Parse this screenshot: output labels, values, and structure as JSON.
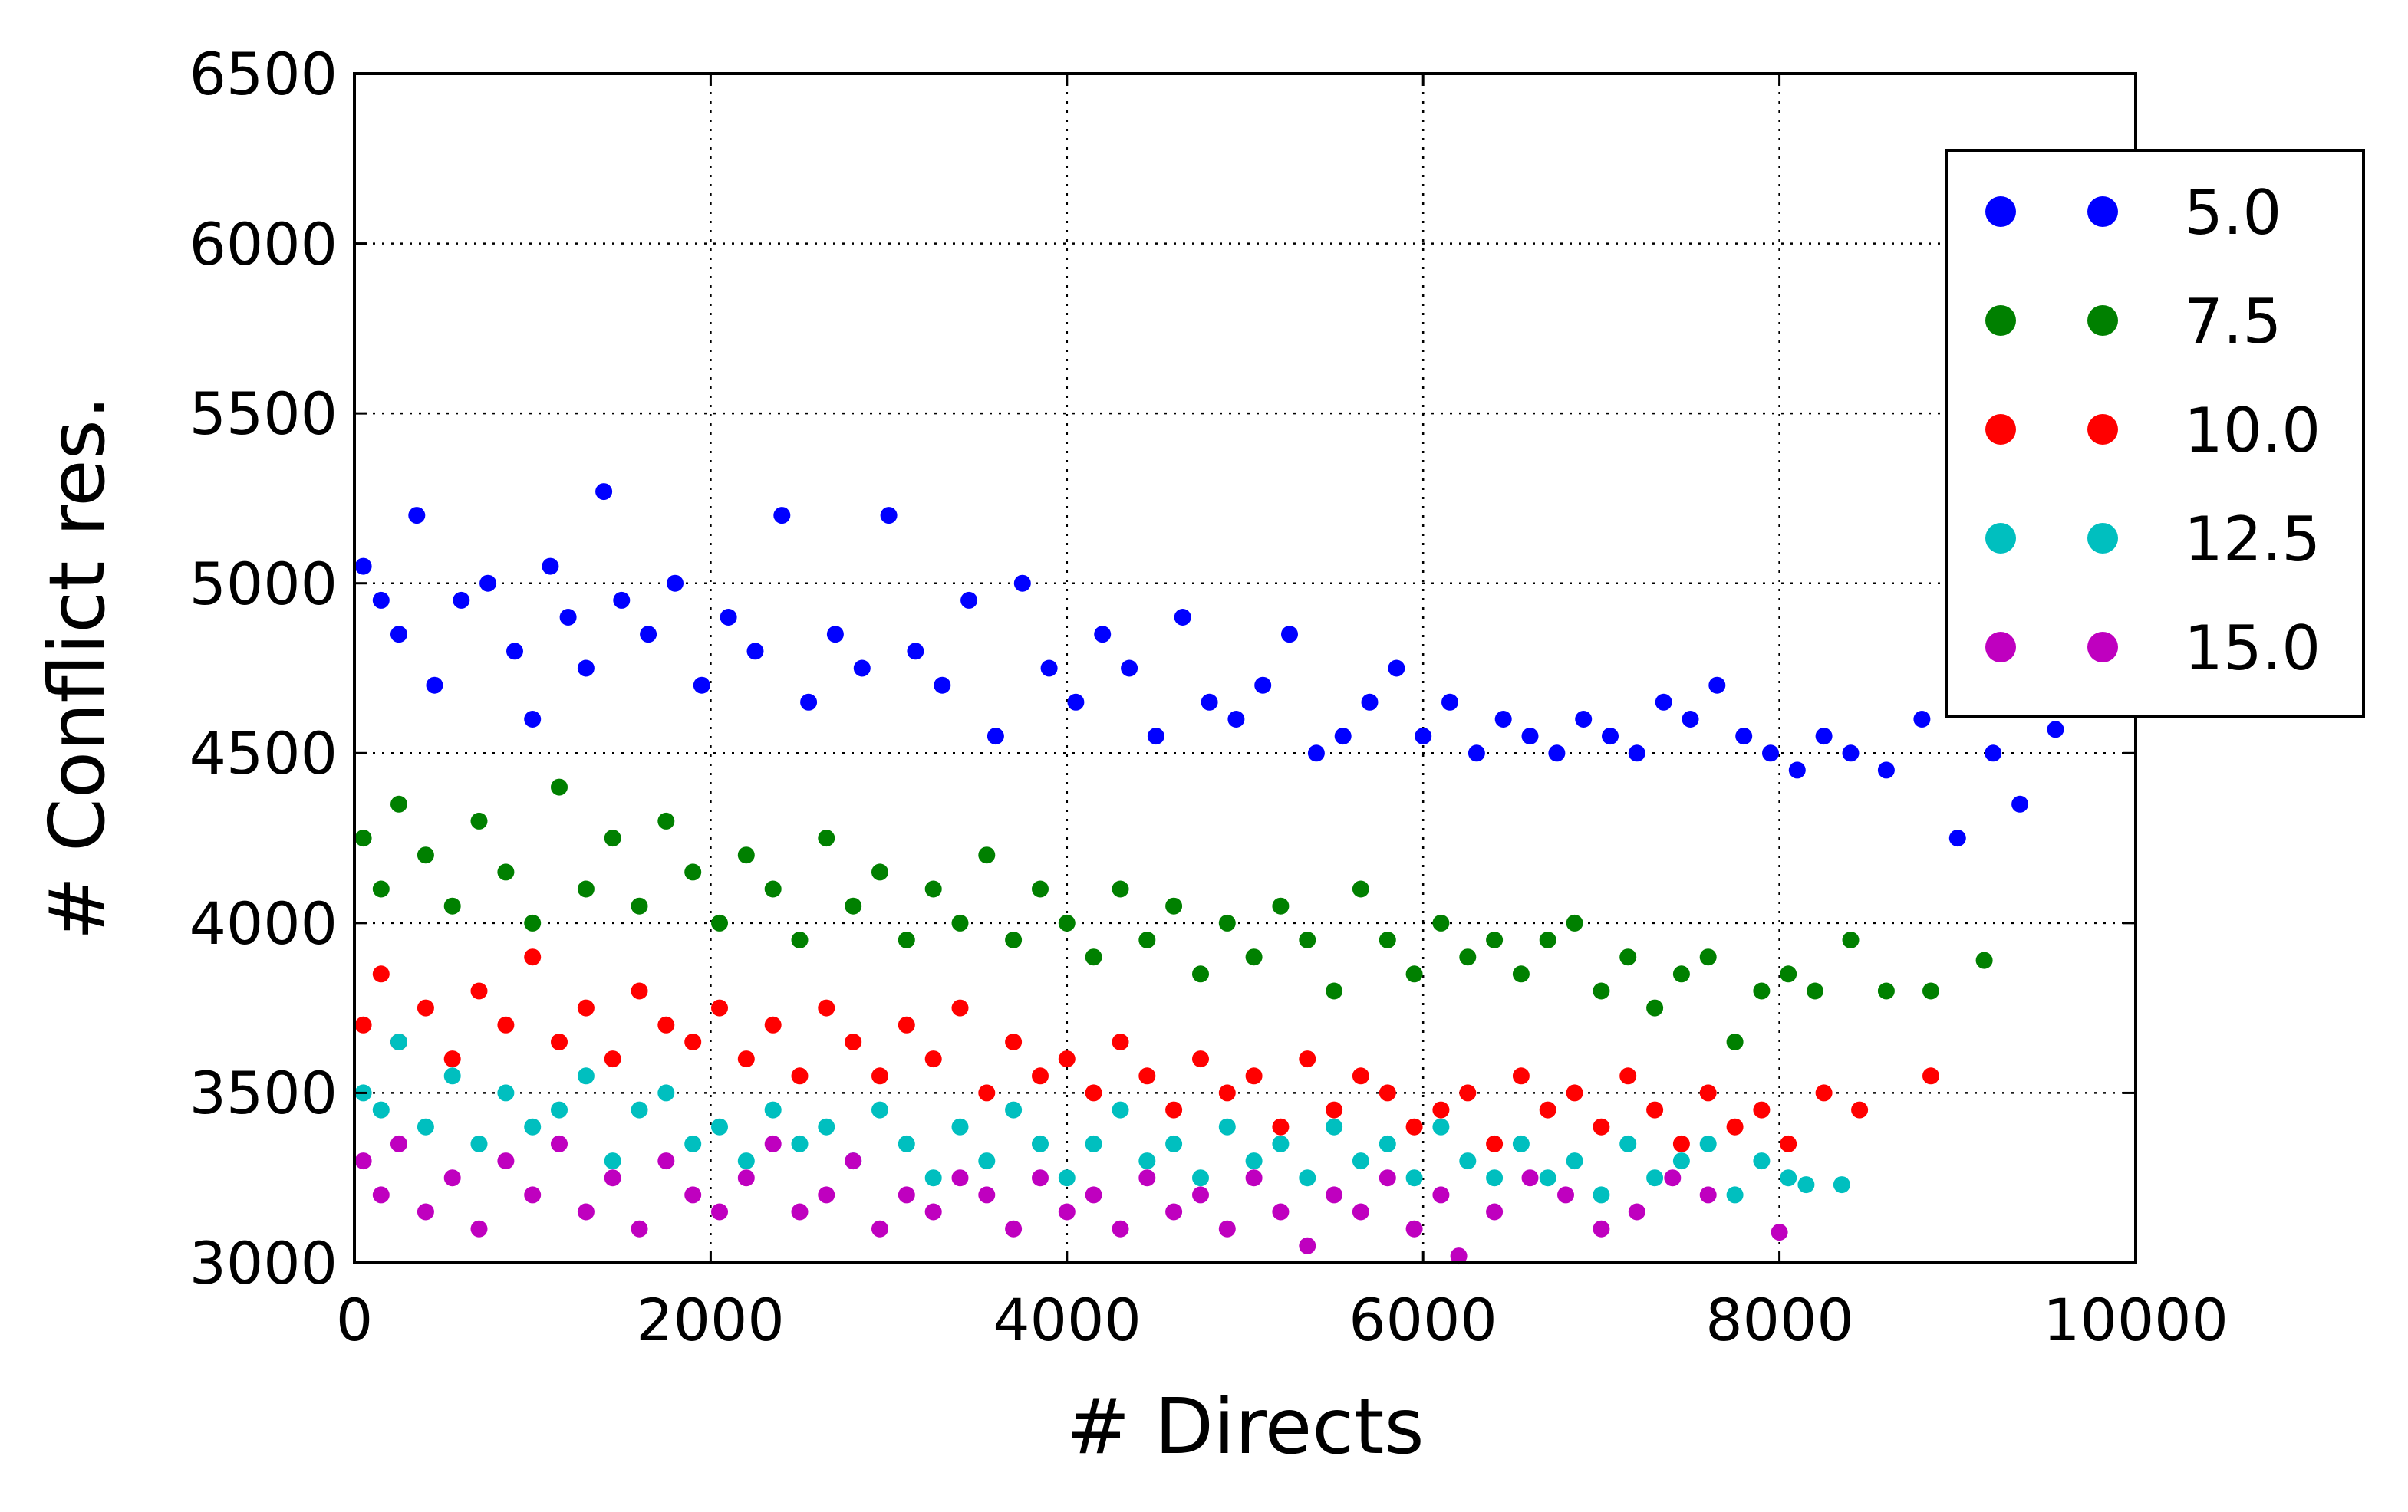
{
  "chart_data": {
    "type": "scatter",
    "title": "",
    "xlabel": "# Directs",
    "ylabel": "# Conflict res.",
    "xlim": [
      0,
      10000
    ],
    "ylim": [
      3000,
      6500
    ],
    "x_ticks": [
      "0",
      "2000",
      "4000",
      "6000",
      "8000",
      "10000"
    ],
    "y_ticks": [
      "3000",
      "3500",
      "4000",
      "4500",
      "5000",
      "5500",
      "6000",
      "6500"
    ],
    "grid": true,
    "legend_placement": "top-right",
    "series": [
      {
        "name": "5.0",
        "color": "#0000ff",
        "points": [
          [
            50,
            5050
          ],
          [
            150,
            4950
          ],
          [
            250,
            4850
          ],
          [
            350,
            5200
          ],
          [
            450,
            4700
          ],
          [
            600,
            4950
          ],
          [
            750,
            5000
          ],
          [
            900,
            4800
          ],
          [
            1000,
            4600
          ],
          [
            1100,
            5050
          ],
          [
            1200,
            4900
          ],
          [
            1300,
            4750
          ],
          [
            1400,
            5270
          ],
          [
            1500,
            4950
          ],
          [
            1650,
            4850
          ],
          [
            1800,
            5000
          ],
          [
            1950,
            4700
          ],
          [
            2100,
            4900
          ],
          [
            2250,
            4800
          ],
          [
            2400,
            5200
          ],
          [
            2550,
            4650
          ],
          [
            2700,
            4850
          ],
          [
            2850,
            4750
          ],
          [
            3000,
            5200
          ],
          [
            3150,
            4800
          ],
          [
            3300,
            4700
          ],
          [
            3450,
            4950
          ],
          [
            3600,
            4550
          ],
          [
            3750,
            5000
          ],
          [
            3900,
            4750
          ],
          [
            4050,
            4650
          ],
          [
            4200,
            4850
          ],
          [
            4350,
            4750
          ],
          [
            4500,
            4550
          ],
          [
            4650,
            4900
          ],
          [
            4800,
            4650
          ],
          [
            4950,
            4600
          ],
          [
            5100,
            4700
          ],
          [
            5250,
            4850
          ],
          [
            5400,
            4500
          ],
          [
            5550,
            4550
          ],
          [
            5700,
            4650
          ],
          [
            5850,
            4750
          ],
          [
            6000,
            4550
          ],
          [
            6150,
            4650
          ],
          [
            6300,
            4500
          ],
          [
            6450,
            4600
          ],
          [
            6600,
            4550
          ],
          [
            6750,
            4500
          ],
          [
            6900,
            4600
          ],
          [
            7050,
            4550
          ],
          [
            7200,
            4500
          ],
          [
            7350,
            4650
          ],
          [
            7500,
            4600
          ],
          [
            7650,
            4700
          ],
          [
            7800,
            4550
          ],
          [
            7950,
            4500
          ],
          [
            8100,
            4450
          ],
          [
            8250,
            4550
          ],
          [
            8400,
            4500
          ],
          [
            8600,
            4450
          ],
          [
            8800,
            4600
          ],
          [
            9000,
            4250
          ],
          [
            9200,
            4500
          ],
          [
            9350,
            4350
          ],
          [
            9550,
            4570
          ]
        ]
      },
      {
        "name": "7.5",
        "color": "#008000",
        "points": [
          [
            50,
            4250
          ],
          [
            150,
            4100
          ],
          [
            250,
            4350
          ],
          [
            400,
            4200
          ],
          [
            550,
            4050
          ],
          [
            700,
            4300
          ],
          [
            850,
            4150
          ],
          [
            1000,
            4000
          ],
          [
            1150,
            4400
          ],
          [
            1300,
            4100
          ],
          [
            1450,
            4250
          ],
          [
            1600,
            4050
          ],
          [
            1750,
            4300
          ],
          [
            1900,
            4150
          ],
          [
            2050,
            4000
          ],
          [
            2200,
            4200
          ],
          [
            2350,
            4100
          ],
          [
            2500,
            3950
          ],
          [
            2650,
            4250
          ],
          [
            2800,
            4050
          ],
          [
            2950,
            4150
          ],
          [
            3100,
            3950
          ],
          [
            3250,
            4100
          ],
          [
            3400,
            4000
          ],
          [
            3550,
            4200
          ],
          [
            3700,
            3950
          ],
          [
            3850,
            4100
          ],
          [
            4000,
            4000
          ],
          [
            4150,
            3900
          ],
          [
            4300,
            4100
          ],
          [
            4450,
            3950
          ],
          [
            4600,
            4050
          ],
          [
            4750,
            3850
          ],
          [
            4900,
            4000
          ],
          [
            5050,
            3900
          ],
          [
            5200,
            4050
          ],
          [
            5350,
            3950
          ],
          [
            5500,
            3800
          ],
          [
            5650,
            4100
          ],
          [
            5800,
            3950
          ],
          [
            5950,
            3850
          ],
          [
            6100,
            4000
          ],
          [
            6250,
            3900
          ],
          [
            6400,
            3950
          ],
          [
            6550,
            3850
          ],
          [
            6700,
            3950
          ],
          [
            6850,
            4000
          ],
          [
            7000,
            3800
          ],
          [
            7150,
            3900
          ],
          [
            7300,
            3750
          ],
          [
            7450,
            3850
          ],
          [
            7600,
            3900
          ],
          [
            7750,
            3650
          ],
          [
            7900,
            3800
          ],
          [
            8050,
            3850
          ],
          [
            8200,
            3800
          ],
          [
            8400,
            3950
          ],
          [
            8600,
            3800
          ],
          [
            8850,
            3800
          ],
          [
            9150,
            3890
          ]
        ]
      },
      {
        "name": "10.0",
        "color": "#ff0000",
        "points": [
          [
            50,
            3700
          ],
          [
            150,
            3850
          ],
          [
            250,
            3650
          ],
          [
            400,
            3750
          ],
          [
            550,
            3600
          ],
          [
            700,
            3800
          ],
          [
            850,
            3700
          ],
          [
            1000,
            3900
          ],
          [
            1150,
            3650
          ],
          [
            1300,
            3750
          ],
          [
            1450,
            3600
          ],
          [
            1600,
            3800
          ],
          [
            1750,
            3700
          ],
          [
            1900,
            3650
          ],
          [
            2050,
            3750
          ],
          [
            2200,
            3600
          ],
          [
            2350,
            3700
          ],
          [
            2500,
            3550
          ],
          [
            2650,
            3750
          ],
          [
            2800,
            3650
          ],
          [
            2950,
            3550
          ],
          [
            3100,
            3700
          ],
          [
            3250,
            3600
          ],
          [
            3400,
            3750
          ],
          [
            3550,
            3500
          ],
          [
            3700,
            3650
          ],
          [
            3850,
            3550
          ],
          [
            4000,
            3600
          ],
          [
            4150,
            3500
          ],
          [
            4300,
            3650
          ],
          [
            4450,
            3550
          ],
          [
            4600,
            3450
          ],
          [
            4750,
            3600
          ],
          [
            4900,
            3500
          ],
          [
            5050,
            3550
          ],
          [
            5200,
            3400
          ],
          [
            5350,
            3600
          ],
          [
            5500,
            3450
          ],
          [
            5650,
            3550
          ],
          [
            5800,
            3500
          ],
          [
            5950,
            3400
          ],
          [
            6100,
            3450
          ],
          [
            6250,
            3500
          ],
          [
            6400,
            3350
          ],
          [
            6550,
            3550
          ],
          [
            6700,
            3450
          ],
          [
            6850,
            3500
          ],
          [
            7000,
            3400
          ],
          [
            7150,
            3550
          ],
          [
            7300,
            3450
          ],
          [
            7450,
            3350
          ],
          [
            7600,
            3500
          ],
          [
            7750,
            3400
          ],
          [
            7900,
            3450
          ],
          [
            8050,
            3350
          ],
          [
            8250,
            3500
          ],
          [
            8450,
            3450
          ],
          [
            8850,
            3550
          ]
        ]
      },
      {
        "name": "12.5",
        "color": "#00bfbf",
        "points": [
          [
            50,
            3500
          ],
          [
            150,
            3450
          ],
          [
            250,
            3650
          ],
          [
            400,
            3400
          ],
          [
            550,
            3550
          ],
          [
            700,
            3350
          ],
          [
            850,
            3500
          ],
          [
            1000,
            3400
          ],
          [
            1150,
            3450
          ],
          [
            1300,
            3550
          ],
          [
            1450,
            3300
          ],
          [
            1600,
            3450
          ],
          [
            1750,
            3500
          ],
          [
            1900,
            3350
          ],
          [
            2050,
            3400
          ],
          [
            2200,
            3300
          ],
          [
            2350,
            3450
          ],
          [
            2500,
            3350
          ],
          [
            2650,
            3400
          ],
          [
            2800,
            3300
          ],
          [
            2950,
            3450
          ],
          [
            3100,
            3350
          ],
          [
            3250,
            3250
          ],
          [
            3400,
            3400
          ],
          [
            3550,
            3300
          ],
          [
            3700,
            3450
          ],
          [
            3850,
            3350
          ],
          [
            4000,
            3250
          ],
          [
            4150,
            3350
          ],
          [
            4300,
            3450
          ],
          [
            4450,
            3300
          ],
          [
            4600,
            3350
          ],
          [
            4750,
            3250
          ],
          [
            4900,
            3400
          ],
          [
            5050,
            3300
          ],
          [
            5200,
            3350
          ],
          [
            5350,
            3250
          ],
          [
            5500,
            3400
          ],
          [
            5650,
            3300
          ],
          [
            5800,
            3350
          ],
          [
            5950,
            3250
          ],
          [
            6100,
            3400
          ],
          [
            6250,
            3300
          ],
          [
            6400,
            3250
          ],
          [
            6550,
            3350
          ],
          [
            6700,
            3250
          ],
          [
            6850,
            3300
          ],
          [
            7000,
            3200
          ],
          [
            7150,
            3350
          ],
          [
            7300,
            3250
          ],
          [
            7450,
            3300
          ],
          [
            7600,
            3350
          ],
          [
            7750,
            3200
          ],
          [
            7900,
            3300
          ],
          [
            8050,
            3250
          ],
          [
            8150,
            3230
          ],
          [
            8350,
            3230
          ]
        ]
      },
      {
        "name": "15.0",
        "color": "#bf00bf",
        "points": [
          [
            50,
            3300
          ],
          [
            150,
            3200
          ],
          [
            250,
            3350
          ],
          [
            400,
            3150
          ],
          [
            550,
            3250
          ],
          [
            700,
            3100
          ],
          [
            850,
            3300
          ],
          [
            1000,
            3200
          ],
          [
            1150,
            3350
          ],
          [
            1300,
            3150
          ],
          [
            1450,
            3250
          ],
          [
            1600,
            3100
          ],
          [
            1750,
            3300
          ],
          [
            1900,
            3200
          ],
          [
            2050,
            3150
          ],
          [
            2200,
            3250
          ],
          [
            2350,
            3350
          ],
          [
            2500,
            3150
          ],
          [
            2650,
            3200
          ],
          [
            2800,
            3300
          ],
          [
            2950,
            3100
          ],
          [
            3100,
            3200
          ],
          [
            3250,
            3150
          ],
          [
            3400,
            3250
          ],
          [
            3550,
            3200
          ],
          [
            3700,
            3100
          ],
          [
            3850,
            3250
          ],
          [
            4000,
            3150
          ],
          [
            4150,
            3200
          ],
          [
            4300,
            3100
          ],
          [
            4450,
            3250
          ],
          [
            4600,
            3150
          ],
          [
            4750,
            3200
          ],
          [
            4900,
            3100
          ],
          [
            5050,
            3250
          ],
          [
            5200,
            3150
          ],
          [
            5350,
            3050
          ],
          [
            5500,
            3200
          ],
          [
            5650,
            3150
          ],
          [
            5800,
            3250
          ],
          [
            5950,
            3100
          ],
          [
            6100,
            3200
          ],
          [
            6200,
            3020
          ],
          [
            6400,
            3150
          ],
          [
            6600,
            3250
          ],
          [
            6800,
            3200
          ],
          [
            7000,
            3100
          ],
          [
            7200,
            3150
          ],
          [
            7400,
            3250
          ],
          [
            7600,
            3200
          ],
          [
            8000,
            3090
          ]
        ]
      }
    ]
  }
}
